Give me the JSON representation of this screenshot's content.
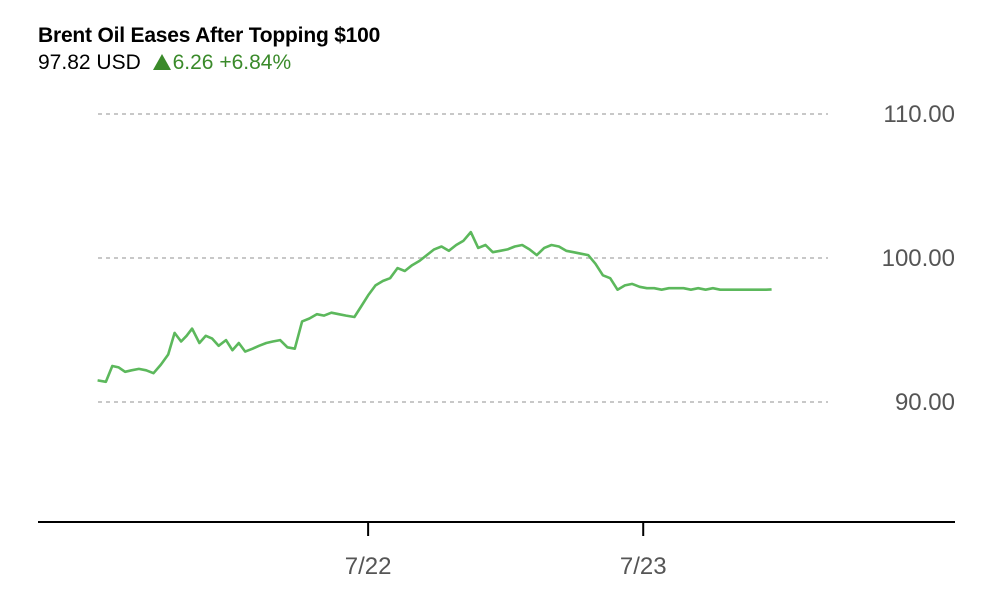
{
  "header": {
    "title": "Brent Oil Eases After Topping $100",
    "price": "97.82",
    "currency": "USD",
    "change": "6.26",
    "change_pct": "+6.84%"
  },
  "colors": {
    "line": "#5cb85c",
    "up": "#3a8a2a",
    "grid": "#c8c8c8",
    "axis": "#000000"
  },
  "chart_data": {
    "type": "line",
    "title": "Brent Oil Eases After Topping $100",
    "xlabel": "",
    "ylabel": "",
    "ylim": [
      80,
      115
    ],
    "y_ticks": [
      90,
      100,
      110
    ],
    "y_tick_labels": [
      "90.00",
      "100.00",
      "110.00"
    ],
    "x_ticks": [
      0.36,
      0.66
    ],
    "x_tick_labels": [
      "7/22",
      "7/23"
    ],
    "xlim": [
      0,
      1
    ],
    "grid": true,
    "series": [
      {
        "x": [
          0.065,
          0.074,
          0.081,
          0.088,
          0.095,
          0.102,
          0.11,
          0.118,
          0.126,
          0.134,
          0.142,
          0.149,
          0.156,
          0.162,
          0.168,
          0.176,
          0.183,
          0.19,
          0.197,
          0.205,
          0.212,
          0.219,
          0.226,
          0.234,
          0.241,
          0.249,
          0.256,
          0.264,
          0.272,
          0.28,
          0.288,
          0.296,
          0.304,
          0.312,
          0.32,
          0.328,
          0.336,
          0.345,
          0.352,
          0.36,
          0.368,
          0.376,
          0.384,
          0.392,
          0.4,
          0.408,
          0.416,
          0.424,
          0.432,
          0.44,
          0.448,
          0.456,
          0.464,
          0.472,
          0.48,
          0.488,
          0.496,
          0.504,
          0.512,
          0.52,
          0.528,
          0.536,
          0.544,
          0.552,
          0.56,
          0.568,
          0.576,
          0.584,
          0.592,
          0.6,
          0.608,
          0.616,
          0.624,
          0.632,
          0.64,
          0.648,
          0.656,
          0.664,
          0.672,
          0.68,
          0.688,
          0.696,
          0.704,
          0.712,
          0.72,
          0.728,
          0.736,
          0.744,
          0.752,
          0.758,
          0.764,
          0.77,
          0.776,
          0.782,
          0.788,
          0.794,
          0.8
        ],
        "y": [
          91.5,
          91.4,
          92.5,
          92.4,
          92.1,
          92.2,
          92.3,
          92.2,
          92.0,
          92.6,
          93.3,
          94.8,
          94.2,
          94.6,
          95.1,
          94.1,
          94.6,
          94.4,
          93.9,
          94.3,
          93.6,
          94.1,
          93.5,
          93.7,
          93.9,
          94.1,
          94.2,
          94.3,
          93.8,
          93.7,
          95.6,
          95.8,
          96.1,
          96.0,
          96.2,
          96.1,
          96.0,
          95.9,
          96.6,
          97.4,
          98.1,
          98.4,
          98.6,
          99.3,
          99.1,
          99.5,
          99.8,
          100.2,
          100.6,
          100.8,
          100.5,
          100.9,
          101.2,
          101.8,
          100.7,
          100.9,
          100.4,
          100.5,
          100.6,
          100.8,
          100.9,
          100.6,
          100.2,
          100.7,
          100.9,
          100.8,
          100.5,
          100.4,
          100.3,
          100.2,
          99.6,
          98.8,
          98.6,
          97.8,
          98.1,
          98.2,
          98.0,
          97.9,
          97.9,
          97.8,
          97.9,
          97.9,
          97.9,
          97.8,
          97.9,
          97.8,
          97.9,
          97.8,
          97.8,
          97.8,
          97.8,
          97.8,
          97.8,
          97.8,
          97.8,
          97.8,
          97.82
        ],
        "y_note_placeholder": null
      }
    ]
  }
}
